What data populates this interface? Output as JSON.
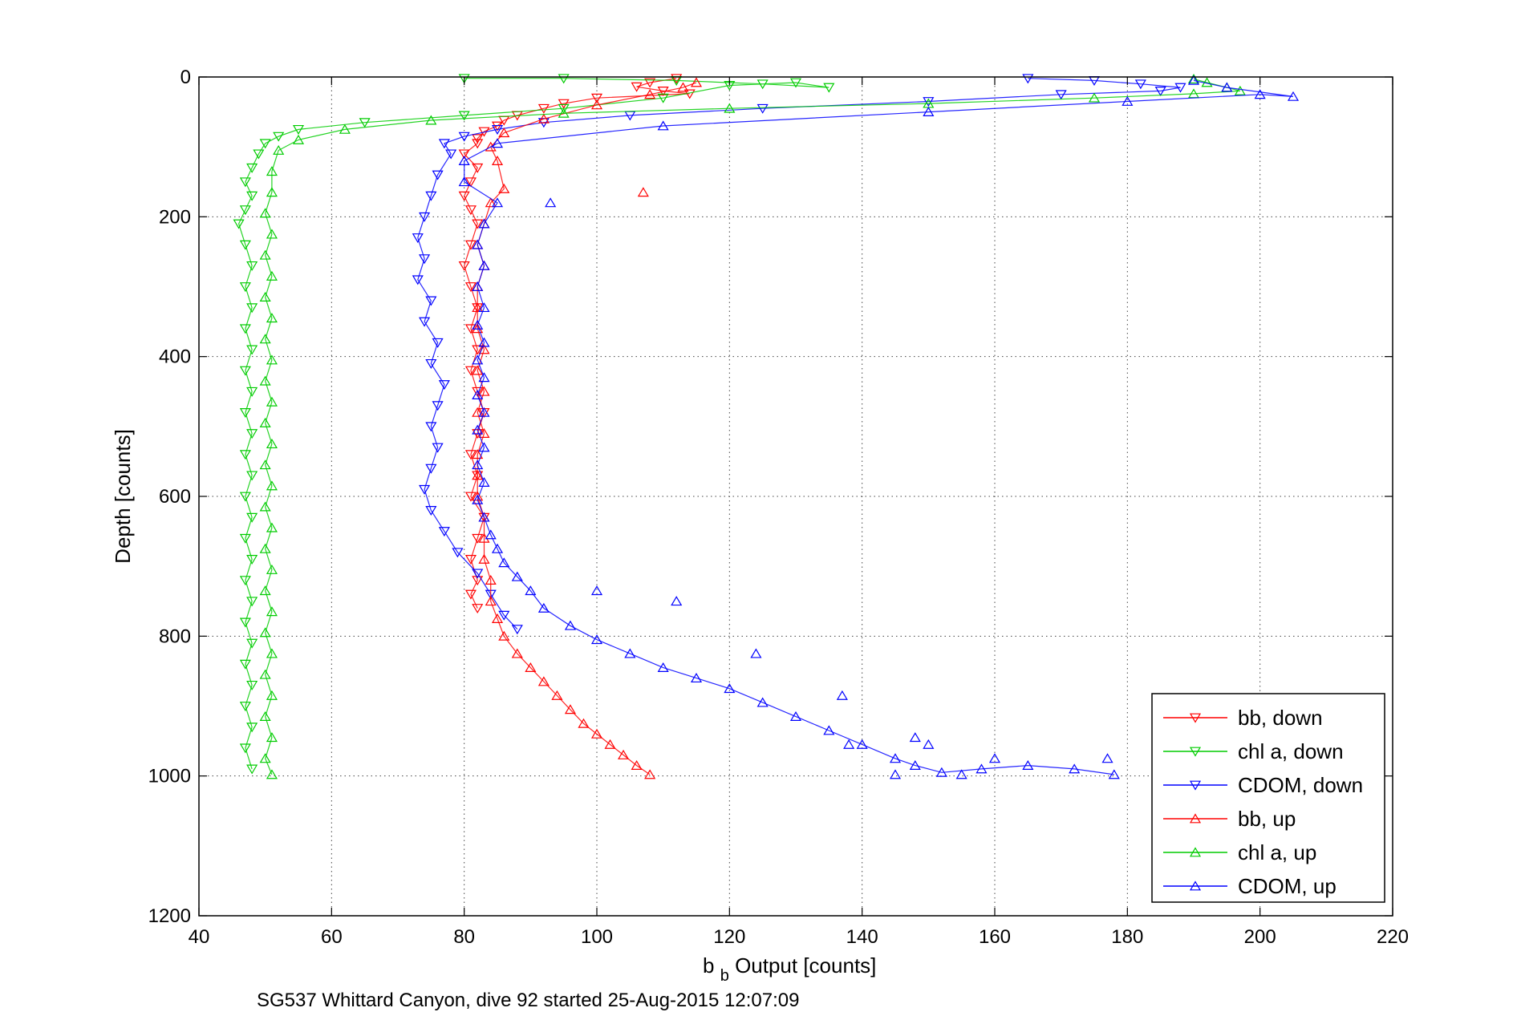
{
  "chart_data": {
    "type": "scatter",
    "xlabel": {
      "main": "b",
      "sub": "b",
      "rest": " Output [counts]"
    },
    "ylabel": "Depth [counts]",
    "caption": "SG537 Whittard Canyon, dive 92 started 25-Aug-2015 12:07:09",
    "xlim": [
      40,
      220
    ],
    "ylim": [
      0,
      1200
    ],
    "y_reversed": true,
    "grid": true,
    "legend_position": "lower-right",
    "x_ticks": [
      "40",
      "60",
      "80",
      "100",
      "120",
      "140",
      "160",
      "180",
      "200",
      "220"
    ],
    "y_ticks": [
      "0",
      "200",
      "400",
      "600",
      "800",
      "1000",
      "1200"
    ],
    "series": [
      {
        "name": "bb, down",
        "color": "#ff0000",
        "marker": "triangle-down",
        "line": true,
        "points": [
          [
            112,
            2
          ],
          [
            108,
            8
          ],
          [
            106,
            14
          ],
          [
            110,
            20
          ],
          [
            114,
            24
          ],
          [
            100,
            30
          ],
          [
            95,
            38
          ],
          [
            92,
            45
          ],
          [
            88,
            55
          ],
          [
            86,
            62
          ],
          [
            85,
            70
          ],
          [
            83,
            78
          ],
          [
            82,
            88
          ],
          [
            82,
            95
          ],
          [
            80,
            110
          ],
          [
            82,
            130
          ],
          [
            81,
            150
          ],
          [
            80,
            170
          ],
          [
            81,
            190
          ],
          [
            82,
            210
          ],
          [
            81,
            240
          ],
          [
            80,
            270
          ],
          [
            81,
            300
          ],
          [
            82,
            330
          ],
          [
            81,
            360
          ],
          [
            82,
            390
          ],
          [
            81,
            420
          ],
          [
            82,
            450
          ],
          [
            83,
            480
          ],
          [
            82,
            510
          ],
          [
            81,
            540
          ],
          [
            82,
            570
          ],
          [
            81,
            600
          ],
          [
            83,
            630
          ],
          [
            82,
            660
          ],
          [
            81,
            690
          ],
          [
            82,
            720
          ],
          [
            81,
            740
          ],
          [
            82,
            760
          ]
        ]
      },
      {
        "name": "chl a, down",
        "color": "#00cc00",
        "marker": "triangle-down",
        "line": true,
        "points": [
          [
            80,
            2
          ],
          [
            95,
            2
          ],
          [
            112,
            5
          ],
          [
            125,
            10
          ],
          [
            135,
            15
          ],
          [
            130,
            8
          ],
          [
            120,
            12
          ],
          [
            110,
            30
          ],
          [
            95,
            45
          ],
          [
            80,
            55
          ],
          [
            65,
            65
          ],
          [
            55,
            75
          ],
          [
            52,
            85
          ],
          [
            50,
            95
          ],
          [
            49,
            110
          ],
          [
            48,
            130
          ],
          [
            47,
            150
          ],
          [
            48,
            170
          ],
          [
            47,
            190
          ],
          [
            46,
            210
          ],
          [
            47,
            240
          ],
          [
            48,
            270
          ],
          [
            47,
            300
          ],
          [
            48,
            330
          ],
          [
            47,
            360
          ],
          [
            48,
            390
          ],
          [
            47,
            420
          ],
          [
            48,
            450
          ],
          [
            47,
            480
          ],
          [
            48,
            510
          ],
          [
            47,
            540
          ],
          [
            48,
            570
          ],
          [
            47,
            600
          ],
          [
            48,
            630
          ],
          [
            47,
            660
          ],
          [
            48,
            690
          ],
          [
            47,
            720
          ],
          [
            48,
            750
          ],
          [
            47,
            780
          ],
          [
            48,
            810
          ],
          [
            47,
            840
          ],
          [
            48,
            870
          ],
          [
            47,
            900
          ],
          [
            48,
            930
          ],
          [
            47,
            960
          ],
          [
            48,
            990
          ]
        ]
      },
      {
        "name": "CDOM, down",
        "color": "#0000ff",
        "marker": "triangle-down",
        "line": true,
        "points": [
          [
            165,
            2
          ],
          [
            175,
            5
          ],
          [
            182,
            10
          ],
          [
            188,
            15
          ],
          [
            185,
            20
          ],
          [
            170,
            25
          ],
          [
            150,
            35
          ],
          [
            125,
            45
          ],
          [
            105,
            55
          ],
          [
            92,
            65
          ],
          [
            85,
            75
          ],
          [
            80,
            85
          ],
          [
            77,
            95
          ],
          [
            78,
            110
          ],
          [
            76,
            140
          ],
          [
            75,
            170
          ],
          [
            74,
            200
          ],
          [
            73,
            230
          ],
          [
            74,
            260
          ],
          [
            73,
            290
          ],
          [
            75,
            320
          ],
          [
            74,
            350
          ],
          [
            76,
            380
          ],
          [
            75,
            410
          ],
          [
            77,
            440
          ],
          [
            76,
            470
          ],
          [
            75,
            500
          ],
          [
            76,
            530
          ],
          [
            75,
            560
          ],
          [
            74,
            590
          ],
          [
            75,
            620
          ],
          [
            77,
            650
          ],
          [
            79,
            680
          ],
          [
            82,
            710
          ],
          [
            84,
            740
          ],
          [
            86,
            770
          ],
          [
            88,
            790
          ]
        ]
      },
      {
        "name": "bb, up",
        "color": "#ff0000",
        "marker": "triangle-up",
        "line": true,
        "points": [
          [
            108,
            998
          ],
          [
            106,
            985
          ],
          [
            104,
            970
          ],
          [
            102,
            955
          ],
          [
            100,
            940
          ],
          [
            98,
            925
          ],
          [
            96,
            905
          ],
          [
            94,
            885
          ],
          [
            92,
            865
          ],
          [
            90,
            845
          ],
          [
            88,
            825
          ],
          [
            86,
            800
          ],
          [
            85,
            775
          ],
          [
            84,
            750
          ],
          [
            84,
            720
          ],
          [
            83,
            690
          ],
          [
            83,
            660
          ],
          [
            83,
            630
          ],
          [
            82,
            600
          ],
          [
            82,
            570
          ],
          [
            82,
            540
          ],
          [
            83,
            510
          ],
          [
            82,
            480
          ],
          [
            83,
            450
          ],
          [
            82,
            420
          ],
          [
            83,
            390
          ],
          [
            82,
            360
          ],
          [
            82,
            330
          ],
          [
            82,
            300
          ],
          [
            83,
            270
          ],
          [
            82,
            240
          ],
          [
            83,
            210
          ],
          [
            84,
            180
          ],
          [
            86,
            160
          ],
          [
            85,
            120
          ],
          [
            84,
            100
          ],
          [
            86,
            80
          ],
          [
            92,
            60
          ],
          [
            100,
            40
          ],
          [
            108,
            25
          ],
          [
            113,
            15
          ],
          [
            115,
            8
          ]
        ]
      },
      {
        "name": "chl a, up",
        "color": "#00cc00",
        "marker": "triangle-up",
        "line": true,
        "points": [
          [
            51,
            998
          ],
          [
            50,
            975
          ],
          [
            51,
            945
          ],
          [
            50,
            915
          ],
          [
            51,
            885
          ],
          [
            50,
            855
          ],
          [
            51,
            825
          ],
          [
            50,
            795
          ],
          [
            51,
            765
          ],
          [
            50,
            735
          ],
          [
            51,
            705
          ],
          [
            50,
            675
          ],
          [
            51,
            645
          ],
          [
            50,
            615
          ],
          [
            51,
            585
          ],
          [
            50,
            555
          ],
          [
            51,
            525
          ],
          [
            50,
            495
          ],
          [
            51,
            465
          ],
          [
            50,
            435
          ],
          [
            51,
            405
          ],
          [
            50,
            375
          ],
          [
            51,
            345
          ],
          [
            50,
            315
          ],
          [
            51,
            285
          ],
          [
            50,
            255
          ],
          [
            51,
            225
          ],
          [
            50,
            195
          ],
          [
            51,
            165
          ],
          [
            51,
            135
          ],
          [
            52,
            105
          ],
          [
            55,
            90
          ],
          [
            62,
            75
          ],
          [
            75,
            62
          ],
          [
            95,
            52
          ],
          [
            120,
            45
          ],
          [
            150,
            38
          ],
          [
            175,
            30
          ],
          [
            190,
            24
          ],
          [
            197,
            20
          ],
          [
            195,
            15
          ],
          [
            192,
            8
          ],
          [
            190,
            3
          ]
        ]
      },
      {
        "name": "CDOM, up",
        "color": "#0000ff",
        "marker": "triangle-up",
        "line": true,
        "points": [
          [
            178,
            998
          ],
          [
            172,
            990
          ],
          [
            165,
            985
          ],
          [
            158,
            990
          ],
          [
            152,
            995
          ],
          [
            148,
            985
          ],
          [
            145,
            975
          ],
          [
            140,
            955
          ],
          [
            135,
            935
          ],
          [
            130,
            915
          ],
          [
            125,
            895
          ],
          [
            120,
            875
          ],
          [
            115,
            860
          ],
          [
            110,
            845
          ],
          [
            105,
            825
          ],
          [
            100,
            805
          ],
          [
            96,
            785
          ],
          [
            92,
            760
          ],
          [
            90,
            735
          ],
          [
            88,
            715
          ],
          [
            86,
            695
          ],
          [
            85,
            675
          ],
          [
            84,
            655
          ],
          [
            83,
            630
          ],
          [
            82,
            605
          ],
          [
            83,
            580
          ],
          [
            82,
            555
          ],
          [
            83,
            530
          ],
          [
            82,
            505
          ],
          [
            83,
            480
          ],
          [
            82,
            455
          ],
          [
            83,
            430
          ],
          [
            82,
            405
          ],
          [
            83,
            380
          ],
          [
            82,
            355
          ],
          [
            83,
            330
          ],
          [
            82,
            300
          ],
          [
            83,
            270
          ],
          [
            82,
            240
          ],
          [
            83,
            210
          ],
          [
            85,
            180
          ],
          [
            80,
            150
          ],
          [
            80,
            120
          ],
          [
            85,
            95
          ],
          [
            110,
            70
          ],
          [
            150,
            50
          ],
          [
            180,
            35
          ],
          [
            200,
            25
          ],
          [
            205,
            28
          ],
          [
            195,
            15
          ],
          [
            190,
            5
          ]
        ]
      }
    ],
    "outliers": [
      {
        "series": 3,
        "x": 107,
        "y": 165
      },
      {
        "series": 5,
        "x": 93,
        "y": 180
      },
      {
        "series": 5,
        "x": 112,
        "y": 750
      },
      {
        "series": 5,
        "x": 100,
        "y": 735
      },
      {
        "series": 5,
        "x": 124,
        "y": 825
      },
      {
        "series": 5,
        "x": 137,
        "y": 885
      },
      {
        "series": 5,
        "x": 138,
        "y": 955
      },
      {
        "series": 5,
        "x": 148,
        "y": 945
      },
      {
        "series": 5,
        "x": 150,
        "y": 955
      },
      {
        "series": 5,
        "x": 160,
        "y": 975
      },
      {
        "series": 5,
        "x": 177,
        "y": 975
      },
      {
        "series": 5,
        "x": 145,
        "y": 998
      },
      {
        "series": 5,
        "x": 155,
        "y": 998
      }
    ]
  }
}
